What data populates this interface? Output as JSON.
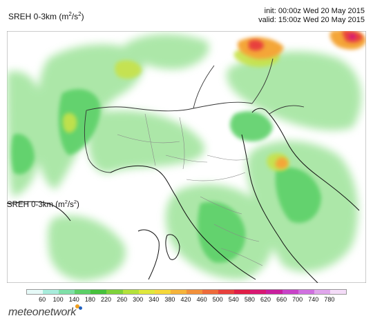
{
  "header": {
    "title_prefix": "SREH 0-3km (m",
    "title_sup1": "2",
    "title_mid": "/s",
    "title_sup2": "2",
    "title_suffix": ")",
    "init": "init: 00:00z Wed 20 May 2015",
    "valid": "valid: 15:00z Wed 20 May 2015"
  },
  "map_label": {
    "prefix": "SREH 0-3km (m",
    "sup1": "2",
    "mid": "/s",
    "sup2": "2",
    "suffix": ")"
  },
  "legend": {
    "labels": [
      "60",
      "100",
      "140",
      "180",
      "220",
      "260",
      "300",
      "340",
      "380",
      "420",
      "460",
      "500",
      "540",
      "580",
      "620",
      "660",
      "700",
      "740",
      "780"
    ],
    "colors": [
      "#e6faf8",
      "#a8ecdc",
      "#7fe0a8",
      "#5cd068",
      "#46c23c",
      "#7ed23a",
      "#b4e23a",
      "#e0e83c",
      "#f6d83a",
      "#f6b43a",
      "#f2903a",
      "#ee6a3a",
      "#e8403c",
      "#e01e46",
      "#d81872",
      "#c81e9e",
      "#c842c8",
      "#d070e0",
      "#e0a6ec",
      "#f4dcf8"
    ]
  },
  "logo": {
    "text": "meteonetwork"
  },
  "colors": {
    "light_green": "#9ee39a",
    "mid_green": "#5cd068",
    "yellow_green": "#c8e24a",
    "orange": "#f4a638",
    "red": "#e8403c",
    "magenta": "#d81872",
    "coast": "#111111",
    "border": "#333333",
    "region": "#888888"
  }
}
